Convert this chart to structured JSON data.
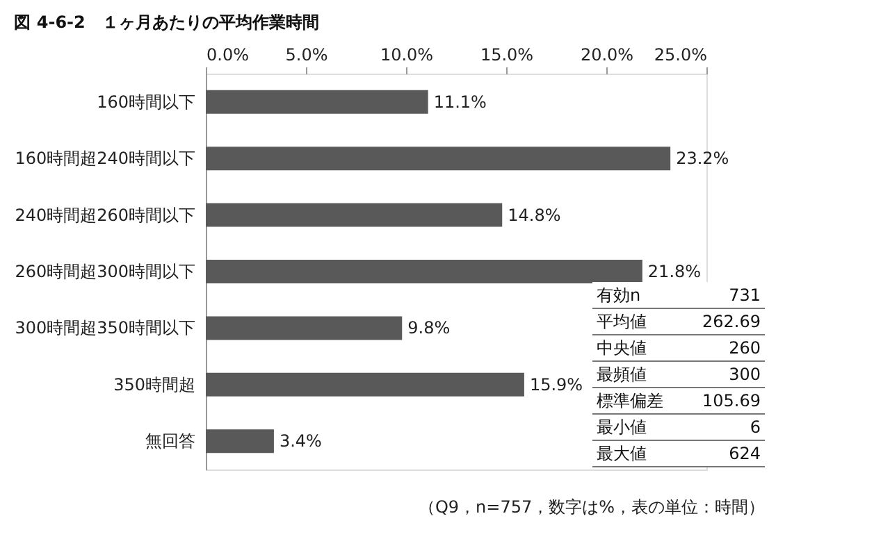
{
  "chart_data": {
    "type": "bar",
    "orientation": "horizontal",
    "title": "図 4-6-2　１ヶ月あたりの平均作業時間",
    "categories": [
      "160時間以下",
      "160時間超240時間以下",
      "240時間超260時間以下",
      "260時間超300時間以下",
      "300時間超350時間以下",
      "350時間超",
      "無回答"
    ],
    "values": [
      11.1,
      23.2,
      14.8,
      21.8,
      9.8,
      15.9,
      3.4
    ],
    "value_labels": [
      "11.1%",
      "23.2%",
      "14.8%",
      "21.8%",
      "9.8%",
      "15.9%",
      "3.4%"
    ],
    "color": "#595959",
    "xlim": [
      0,
      25
    ],
    "xticks": [
      {
        "value": 0,
        "label": "0.0%"
      },
      {
        "value": 5,
        "label": "5.0%"
      },
      {
        "value": 10,
        "label": "10.0%"
      },
      {
        "value": 15,
        "label": "15.0%"
      },
      {
        "value": 20,
        "label": "20.0%"
      },
      {
        "value": 25,
        "label": "25.0%"
      }
    ],
    "grid": false,
    "annotations": [
      "有効n 731",
      "平均値 262.69",
      "中央値 260",
      "最頻値 300",
      "標準偏差 105.69",
      "最小値 6",
      "最大値 624",
      "（Q9，n=757，数字は%，表の単位：時間）"
    ]
  }
}
